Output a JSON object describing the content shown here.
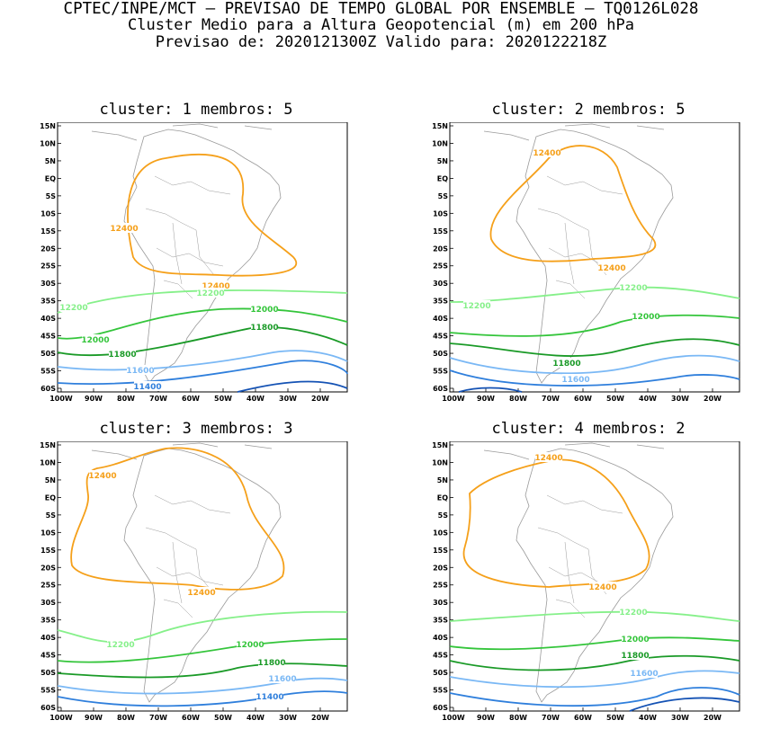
{
  "header": {
    "line1": "CPTEC/INPE/MCT — PREVISAO DE TEMPO GLOBAL POR ENSEMBLE — TQ0126L028",
    "line2": "Cluster Medio para a Altura Geopotencial (m) em 200 hPa",
    "line3": "Previsao de: 2020121300Z   Valido para: 2020122218Z"
  },
  "axes": {
    "lat_labels": [
      "15N",
      "10N",
      "5N",
      "EQ",
      "5S",
      "10S",
      "15S",
      "20S",
      "25S",
      "30S",
      "35S",
      "40S",
      "45S",
      "50S",
      "55S",
      "60S"
    ],
    "lon_labels": [
      "100W",
      "90W",
      "80W",
      "70W",
      "60W",
      "50W",
      "40W",
      "30W",
      "20W"
    ]
  },
  "colors": {
    "c12400": "#f5a01a",
    "c12200": "#86f08a",
    "c12000": "#34c53b",
    "c11800": "#1a9a27",
    "c11600": "#7ab8f5",
    "c11400": "#2f7fdc",
    "c11200": "#1452b4",
    "coast": "#9a9a9a"
  },
  "panels": [
    {
      "title": "cluster: 1   membros: 5",
      "labels": {
        "a": "12400",
        "b": "12400",
        "c": "12200",
        "d": "12200",
        "e": "12000",
        "f": "12000",
        "g": "11800",
        "h": "11800",
        "i": "11600",
        "j": "11400"
      }
    },
    {
      "title": "cluster: 2   membros: 5",
      "labels": {
        "a": "12400",
        "b": "12400",
        "c": "12200",
        "d": "12200",
        "e": "12000",
        "f": "11800",
        "g": "11600"
      }
    },
    {
      "title": "cluster: 3   membros: 3",
      "labels": {
        "a": "12400",
        "b": "12400",
        "c": "12200",
        "d": "12000",
        "e": "11800",
        "f": "11600",
        "g": "11400"
      }
    },
    {
      "title": "cluster: 4   membros: 2",
      "labels": {
        "a": "12400",
        "b": "12400",
        "c": "12200",
        "d": "12000",
        "e": "11800",
        "f": "11600"
      }
    }
  ]
}
